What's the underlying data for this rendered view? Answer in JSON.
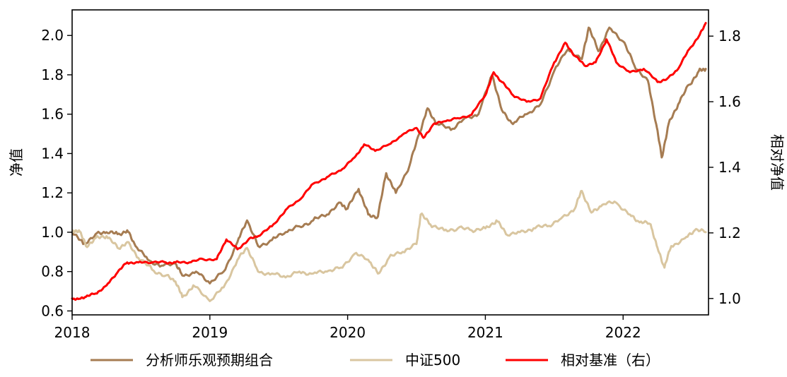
{
  "chart_data": {
    "type": "line",
    "title": "",
    "xlabel": "",
    "ylabel": "净值",
    "y2label": "相对净值",
    "xlim": [
      2018.0,
      2022.62
    ],
    "ylim": [
      0.58,
      2.13
    ],
    "y2lim": [
      0.95,
      1.88
    ],
    "x_ticks": [
      2018,
      2019,
      2020,
      2021,
      2022
    ],
    "x_tick_labels": [
      "2018",
      "2019",
      "2020",
      "2021",
      "2022"
    ],
    "y_ticks": [
      0.6,
      0.8,
      1.0,
      1.2,
      1.4,
      1.6,
      1.8,
      2.0
    ],
    "y_tick_labels": [
      "0.6",
      "0.8",
      "1.0",
      "1.2",
      "1.4",
      "1.6",
      "1.8",
      "2.0"
    ],
    "y2_ticks": [
      1.0,
      1.2,
      1.4,
      1.6,
      1.8
    ],
    "y2_tick_labels": [
      "1.0",
      "1.2",
      "1.4",
      "1.6",
      "1.8"
    ],
    "grid": false,
    "legend_position": "bottom",
    "series": [
      {
        "name": "分析师乐观预期组合",
        "color": "#A67C52",
        "axis": "left",
        "points": [
          [
            2018.0,
            1.0
          ],
          [
            2018.08,
            0.94
          ],
          [
            2018.17,
            0.99
          ],
          [
            2018.25,
            1.0
          ],
          [
            2018.33,
            0.99
          ],
          [
            2018.4,
            1.01
          ],
          [
            2018.46,
            0.93
          ],
          [
            2018.55,
            0.86
          ],
          [
            2018.65,
            0.83
          ],
          [
            2018.75,
            0.84
          ],
          [
            2018.8,
            0.78
          ],
          [
            2018.9,
            0.8
          ],
          [
            2019.0,
            0.74
          ],
          [
            2019.1,
            0.8
          ],
          [
            2019.2,
            0.95
          ],
          [
            2019.27,
            1.06
          ],
          [
            2019.35,
            0.93
          ],
          [
            2019.45,
            0.96
          ],
          [
            2019.55,
            1.0
          ],
          [
            2019.65,
            1.03
          ],
          [
            2019.75,
            1.06
          ],
          [
            2019.85,
            1.09
          ],
          [
            2019.95,
            1.15
          ],
          [
            2020.0,
            1.12
          ],
          [
            2020.08,
            1.22
          ],
          [
            2020.15,
            1.09
          ],
          [
            2020.22,
            1.08
          ],
          [
            2020.28,
            1.3
          ],
          [
            2020.35,
            1.2
          ],
          [
            2020.45,
            1.34
          ],
          [
            2020.52,
            1.5
          ],
          [
            2020.58,
            1.63
          ],
          [
            2020.65,
            1.55
          ],
          [
            2020.75,
            1.52
          ],
          [
            2020.85,
            1.58
          ],
          [
            2020.95,
            1.6
          ],
          [
            2021.05,
            1.8
          ],
          [
            2021.12,
            1.62
          ],
          [
            2021.2,
            1.55
          ],
          [
            2021.3,
            1.6
          ],
          [
            2021.4,
            1.65
          ],
          [
            2021.5,
            1.82
          ],
          [
            2021.6,
            1.93
          ],
          [
            2021.7,
            1.88
          ],
          [
            2021.75,
            2.04
          ],
          [
            2021.82,
            1.92
          ],
          [
            2021.9,
            2.04
          ],
          [
            2022.0,
            1.97
          ],
          [
            2022.08,
            1.85
          ],
          [
            2022.18,
            1.77
          ],
          [
            2022.24,
            1.55
          ],
          [
            2022.28,
            1.38
          ],
          [
            2022.33,
            1.55
          ],
          [
            2022.4,
            1.65
          ],
          [
            2022.48,
            1.75
          ],
          [
            2022.55,
            1.82
          ],
          [
            2022.6,
            1.83
          ]
        ]
      },
      {
        "name": "中证500",
        "color": "#D9C6A0",
        "axis": "left",
        "points": [
          [
            2018.0,
            1.0
          ],
          [
            2018.05,
            1.01
          ],
          [
            2018.1,
            0.93
          ],
          [
            2018.17,
            0.97
          ],
          [
            2018.25,
            0.98
          ],
          [
            2018.33,
            0.92
          ],
          [
            2018.4,
            0.95
          ],
          [
            2018.48,
            0.87
          ],
          [
            2018.58,
            0.81
          ],
          [
            2018.68,
            0.78
          ],
          [
            2018.75,
            0.75
          ],
          [
            2018.8,
            0.67
          ],
          [
            2018.88,
            0.73
          ],
          [
            2019.0,
            0.65
          ],
          [
            2019.1,
            0.72
          ],
          [
            2019.2,
            0.86
          ],
          [
            2019.27,
            0.92
          ],
          [
            2019.35,
            0.8
          ],
          [
            2019.45,
            0.79
          ],
          [
            2019.55,
            0.77
          ],
          [
            2019.65,
            0.8
          ],
          [
            2019.75,
            0.79
          ],
          [
            2019.85,
            0.8
          ],
          [
            2019.95,
            0.82
          ],
          [
            2020.05,
            0.89
          ],
          [
            2020.15,
            0.86
          ],
          [
            2020.22,
            0.79
          ],
          [
            2020.3,
            0.87
          ],
          [
            2020.4,
            0.9
          ],
          [
            2020.5,
            0.94
          ],
          [
            2020.53,
            1.09
          ],
          [
            2020.6,
            1.04
          ],
          [
            2020.7,
            1.01
          ],
          [
            2020.8,
            1.02
          ],
          [
            2020.9,
            1.01
          ],
          [
            2021.0,
            1.02
          ],
          [
            2021.08,
            1.06
          ],
          [
            2021.15,
            0.99
          ],
          [
            2021.25,
            1.0
          ],
          [
            2021.35,
            1.02
          ],
          [
            2021.45,
            1.03
          ],
          [
            2021.55,
            1.07
          ],
          [
            2021.65,
            1.12
          ],
          [
            2021.7,
            1.21
          ],
          [
            2021.77,
            1.1
          ],
          [
            2021.85,
            1.14
          ],
          [
            2021.95,
            1.15
          ],
          [
            2022.05,
            1.09
          ],
          [
            2022.12,
            1.05
          ],
          [
            2022.2,
            1.04
          ],
          [
            2022.25,
            0.92
          ],
          [
            2022.3,
            0.82
          ],
          [
            2022.35,
            0.93
          ],
          [
            2022.45,
            0.97
          ],
          [
            2022.52,
            1.01
          ],
          [
            2022.6,
            1.0
          ]
        ]
      },
      {
        "name": "相对基准（右）",
        "color": "#FF0000",
        "axis": "right",
        "points": [
          [
            2018.0,
            1.0
          ],
          [
            2018.05,
            0.999
          ],
          [
            2018.1,
            1.005
          ],
          [
            2018.17,
            1.015
          ],
          [
            2018.25,
            1.04
          ],
          [
            2018.33,
            1.08
          ],
          [
            2018.4,
            1.11
          ],
          [
            2018.48,
            1.11
          ],
          [
            2018.58,
            1.11
          ],
          [
            2018.68,
            1.11
          ],
          [
            2018.75,
            1.11
          ],
          [
            2018.85,
            1.11
          ],
          [
            2018.95,
            1.12
          ],
          [
            2019.05,
            1.12
          ],
          [
            2019.12,
            1.18
          ],
          [
            2019.2,
            1.15
          ],
          [
            2019.28,
            1.18
          ],
          [
            2019.35,
            1.19
          ],
          [
            2019.45,
            1.22
          ],
          [
            2019.55,
            1.27
          ],
          [
            2019.65,
            1.3
          ],
          [
            2019.75,
            1.35
          ],
          [
            2019.85,
            1.37
          ],
          [
            2019.95,
            1.39
          ],
          [
            2020.05,
            1.43
          ],
          [
            2020.12,
            1.47
          ],
          [
            2020.2,
            1.45
          ],
          [
            2020.3,
            1.47
          ],
          [
            2020.4,
            1.5
          ],
          [
            2020.5,
            1.52
          ],
          [
            2020.55,
            1.49
          ],
          [
            2020.62,
            1.53
          ],
          [
            2020.7,
            1.54
          ],
          [
            2020.8,
            1.55
          ],
          [
            2020.9,
            1.56
          ],
          [
            2021.0,
            1.62
          ],
          [
            2021.06,
            1.69
          ],
          [
            2021.12,
            1.66
          ],
          [
            2021.2,
            1.62
          ],
          [
            2021.3,
            1.6
          ],
          [
            2021.4,
            1.61
          ],
          [
            2021.5,
            1.72
          ],
          [
            2021.58,
            1.78
          ],
          [
            2021.65,
            1.74
          ],
          [
            2021.72,
            1.71
          ],
          [
            2021.8,
            1.72
          ],
          [
            2021.88,
            1.79
          ],
          [
            2021.95,
            1.72
          ],
          [
            2022.05,
            1.69
          ],
          [
            2022.15,
            1.7
          ],
          [
            2022.25,
            1.66
          ],
          [
            2022.32,
            1.67
          ],
          [
            2022.4,
            1.7
          ],
          [
            2022.48,
            1.76
          ],
          [
            2022.55,
            1.8
          ],
          [
            2022.6,
            1.84
          ]
        ]
      }
    ]
  }
}
